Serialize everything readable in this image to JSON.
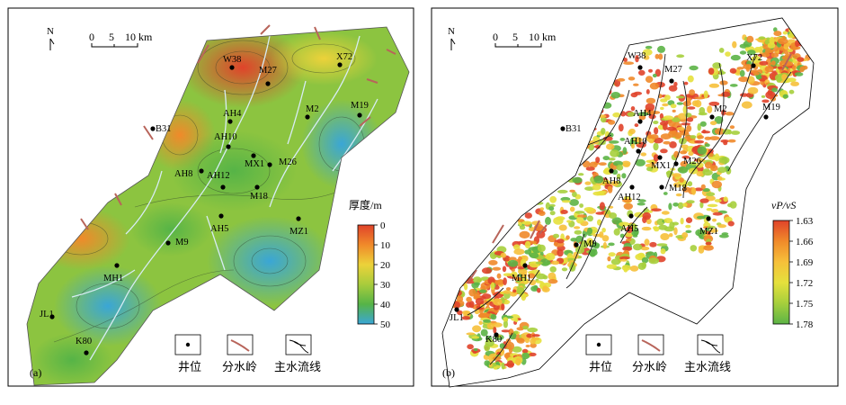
{
  "panels": [
    {
      "label": "(a)",
      "north": "N",
      "scale": {
        "t0": "0",
        "t1": "5",
        "t2": "10 km"
      },
      "legend_title": "厚度/m",
      "legend_ticks": [
        "0",
        "10",
        "20",
        "30",
        "40",
        "50"
      ],
      "wells": [
        "W38",
        "M27",
        "X72",
        "M19",
        "M2",
        "AH4",
        "B31",
        "AH10",
        "MX1",
        "M26",
        "AH8",
        "AH12",
        "M18",
        "AH5",
        "MZ1",
        "M9",
        "MH1",
        "JL1",
        "K80"
      ]
    },
    {
      "label": "(b)",
      "north": "N",
      "scale": {
        "t0": "0",
        "t1": "5",
        "t2": "10 km"
      },
      "legend_title": "vP/vS",
      "legend_ticks": [
        "1.63",
        "1.66",
        "1.69",
        "1.72",
        "1.75",
        "1.78"
      ],
      "wells": [
        "W38",
        "M27",
        "X72",
        "M19",
        "M2",
        "AH4",
        "B31",
        "AH10",
        "MX1",
        "M26",
        "AH8",
        "AH12",
        "M18",
        "AH5",
        "MZ1",
        "M9",
        "MH1",
        "JL1",
        "K80"
      ]
    }
  ],
  "key": {
    "well": "井位",
    "divide": "分水岭",
    "stream": "主水流线"
  },
  "colors": {
    "thickness_ramp": [
      "#e0432a",
      "#f08a2a",
      "#ecd23a",
      "#a8cc3c",
      "#56b447",
      "#3aa6d6"
    ],
    "ratio_ramp": [
      "#e0432a",
      "#f08a2a",
      "#f6c03a",
      "#e5e03c",
      "#a6cf3c",
      "#5cb446"
    ],
    "divide": "#b8645a",
    "stream_a": "#d8ecf5",
    "stream_b": "#1a1a1a"
  }
}
